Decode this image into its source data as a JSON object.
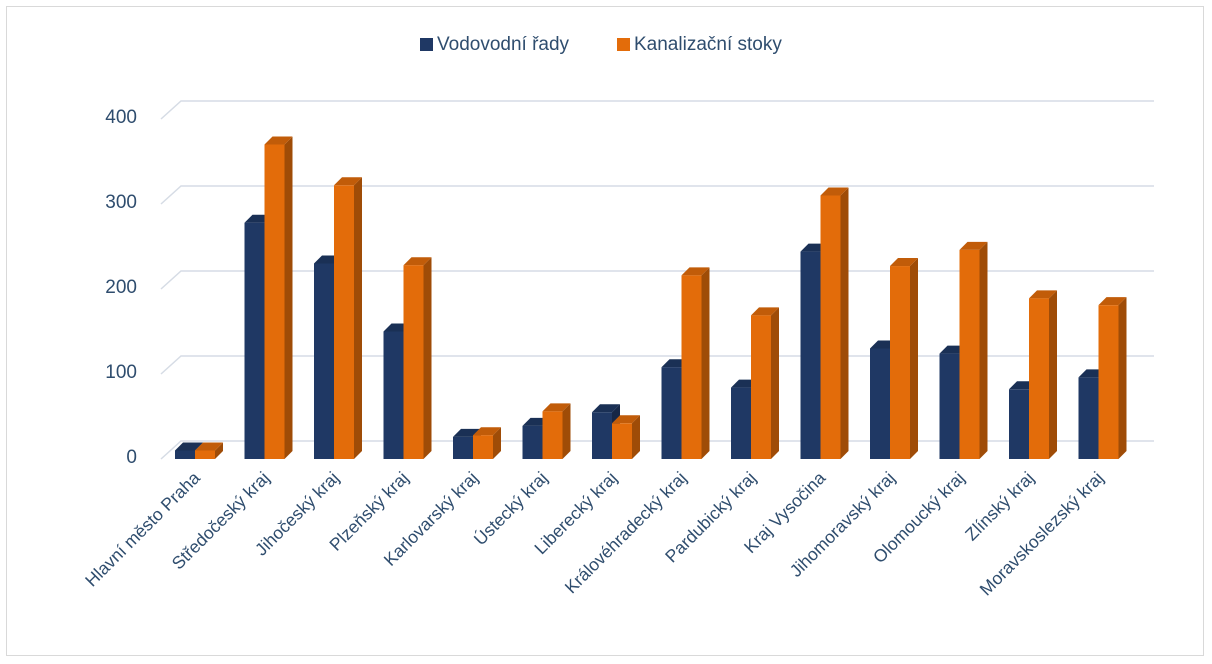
{
  "chart_data": {
    "type": "bar",
    "categories": [
      "Hlavní město Praha",
      "Středočeský kraj",
      "Jihočeský kraj",
      "Plzeňský kraj",
      "Karlovarský kraj",
      "Ústecký kraj",
      "Liberecký kraj",
      "Královéhradecký kraj",
      "Pardubický kraj",
      "Kraj Vysočina",
      "Jihomoravský kraj",
      "Olomoucký kraj",
      "Zlínský kraj",
      "Moravskoslezský kraj"
    ],
    "series": [
      {
        "name": "Vodovodní řady",
        "color": "#1f3864",
        "values": [
          10,
          278,
          230,
          150,
          26,
          39,
          55,
          108,
          84,
          244,
          130,
          124,
          82,
          96
        ]
      },
      {
        "name": "Kanalizační stoky",
        "color": "#e36c0a",
        "values": [
          10,
          370,
          322,
          228,
          28,
          56,
          42,
          216,
          169,
          310,
          227,
          246,
          189,
          181
        ]
      }
    ],
    "ylim": [
      0,
      400
    ],
    "yticks": [
      0,
      100,
      200,
      300,
      400
    ],
    "grid": true,
    "legend_position": "top",
    "xlabel": "",
    "ylabel": "",
    "title": ""
  }
}
